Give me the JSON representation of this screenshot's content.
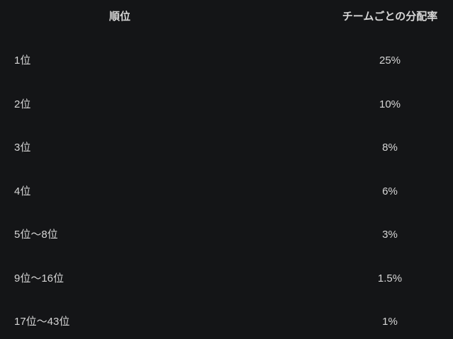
{
  "table": {
    "headers": [
      "順位",
      "チームごとの分配率"
    ],
    "rows": [
      [
        "1位",
        "25%"
      ],
      [
        "2位",
        "10%"
      ],
      [
        "3位",
        "8%"
      ],
      [
        "4位",
        "6%"
      ],
      [
        "5位～8位",
        "3%"
      ],
      [
        "9位～16位",
        "1.5%"
      ],
      [
        "17位～43位",
        "1%"
      ]
    ]
  },
  "colors": {
    "background": "#141517",
    "text": "#d6d6d6"
  }
}
